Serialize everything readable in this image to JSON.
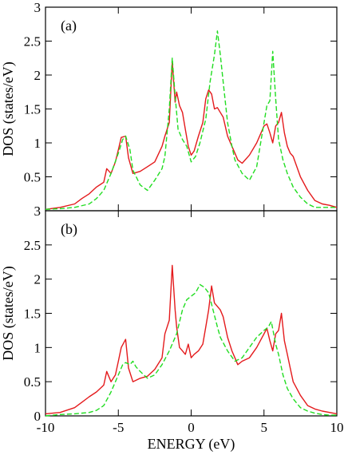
{
  "colors": {
    "series_red": "#e41a1c",
    "series_green": "#22dd22",
    "axis": "#000000"
  },
  "chart_data": [
    {
      "type": "line",
      "panel_label": "(a)",
      "xlabel": "",
      "ylabel": "DOS (states/eV)",
      "xlim": [
        -10,
        10
      ],
      "ylim": [
        0,
        3
      ],
      "yticks": [
        0.5,
        1,
        1.5,
        2,
        2.5,
        3
      ],
      "ytick_labels": [
        "0.5",
        "1",
        "1.5",
        "2",
        "2.5",
        "3"
      ],
      "grid": false,
      "series": [
        {
          "style": "solid",
          "color": "#e41a1c",
          "x": [
            -10,
            -9,
            -8,
            -7.5,
            -7,
            -6.5,
            -6,
            -5.8,
            -5.5,
            -5.2,
            -5,
            -4.8,
            -4.5,
            -4.3,
            -4,
            -3.5,
            -3,
            -2.5,
            -2,
            -1.8,
            -1.5,
            -1.3,
            -1.1,
            -1,
            -0.8,
            -0.6,
            -0.4,
            -0.2,
            0,
            0.2,
            0.5,
            0.8,
            1,
            1.2,
            1.4,
            1.6,
            1.8,
            2,
            2.2,
            2.5,
            2.8,
            3,
            3.2,
            3.5,
            4,
            4.5,
            5,
            5.2,
            5.4,
            5.6,
            5.8,
            6,
            6.2,
            6.4,
            6.6,
            6.8,
            7,
            7.5,
            8,
            8.5,
            9,
            9.5,
            10
          ],
          "y": [
            0.02,
            0.05,
            0.1,
            0.18,
            0.25,
            0.35,
            0.42,
            0.62,
            0.55,
            0.72,
            0.9,
            1.08,
            1.1,
            0.78,
            0.55,
            0.58,
            0.65,
            0.72,
            0.95,
            1.1,
            1.3,
            2.2,
            1.6,
            1.75,
            1.55,
            1.45,
            1.2,
            0.95,
            0.82,
            0.88,
            1.1,
            1.3,
            1.65,
            1.78,
            1.72,
            1.5,
            1.52,
            1.45,
            1.38,
            1.1,
            0.95,
            0.85,
            0.75,
            0.7,
            0.82,
            1.0,
            1.25,
            1.28,
            1.15,
            1.0,
            1.25,
            1.3,
            1.45,
            1.15,
            0.95,
            0.85,
            0.8,
            0.5,
            0.3,
            0.15,
            0.1,
            0.08,
            0.05
          ]
        },
        {
          "style": "dashed",
          "color": "#22dd22",
          "x": [
            -10,
            -9,
            -8,
            -7,
            -6.5,
            -6,
            -5.5,
            -5,
            -4.7,
            -4.5,
            -4.2,
            -4,
            -3.5,
            -3,
            -2.5,
            -2,
            -1.8,
            -1.5,
            -1.3,
            -1.1,
            -0.9,
            -0.6,
            -0.3,
            0,
            0.3,
            0.6,
            1,
            1.3,
            1.6,
            1.8,
            2,
            2.2,
            2.5,
            2.8,
            3,
            3.5,
            4,
            4.5,
            5,
            5.2,
            5.4,
            5.6,
            5.8,
            6,
            6.3,
            6.6,
            7,
            7.5,
            8,
            8.5,
            9,
            9.5,
            10
          ],
          "y": [
            0.02,
            0.03,
            0.05,
            0.1,
            0.18,
            0.3,
            0.55,
            0.85,
            1.05,
            1.1,
            0.9,
            0.6,
            0.38,
            0.3,
            0.45,
            0.62,
            0.8,
            1.5,
            2.25,
            1.7,
            1.2,
            1.05,
            0.95,
            0.72,
            0.8,
            1.0,
            1.35,
            1.9,
            2.3,
            2.65,
            2.3,
            1.9,
            1.3,
            0.95,
            0.75,
            0.55,
            0.45,
            0.65,
            1.3,
            1.55,
            1.62,
            2.35,
            1.65,
            1.05,
            0.75,
            0.55,
            0.35,
            0.2,
            0.1,
            0.05,
            0.05,
            0.05,
            0.05
          ]
        }
      ]
    },
    {
      "type": "line",
      "panel_label": "(b)",
      "xlabel": "ENERGY (eV)",
      "ylabel": "DOS (states/eV)",
      "xlim": [
        -10,
        10
      ],
      "ylim": [
        0,
        3
      ],
      "yticks": [
        0,
        0.5,
        1,
        1.5,
        2,
        2.5,
        3
      ],
      "ytick_labels": [
        "0",
        "0.5",
        "1",
        "1.5",
        "2",
        "2.5",
        "3"
      ],
      "xticks": [
        -10,
        -5,
        0,
        5,
        10
      ],
      "xtick_labels": [
        "-10",
        "-5",
        "0",
        "5",
        "10"
      ],
      "grid": false,
      "series": [
        {
          "style": "solid",
          "color": "#e41a1c",
          "x": [
            -10,
            -9,
            -8,
            -7.5,
            -7,
            -6.5,
            -6,
            -5.8,
            -5.5,
            -5.2,
            -5,
            -4.8,
            -4.5,
            -4.3,
            -4,
            -3.5,
            -3,
            -2.5,
            -2,
            -1.8,
            -1.5,
            -1.3,
            -1.1,
            -1,
            -0.8,
            -0.6,
            -0.4,
            -0.2,
            0,
            0.2,
            0.5,
            0.8,
            1,
            1.2,
            1.4,
            1.6,
            1.8,
            2,
            2.2,
            2.5,
            2.8,
            3,
            3.2,
            3.5,
            4,
            4.5,
            5,
            5.2,
            5.4,
            5.6,
            5.8,
            6,
            6.2,
            6.4,
            6.6,
            6.8,
            7,
            7.5,
            8,
            8.5,
            9,
            9.5,
            10
          ],
          "y": [
            0.03,
            0.05,
            0.12,
            0.2,
            0.28,
            0.35,
            0.45,
            0.65,
            0.5,
            0.6,
            0.8,
            1.0,
            1.12,
            0.7,
            0.5,
            0.55,
            0.58,
            0.68,
            0.85,
            1.2,
            1.4,
            2.2,
            1.55,
            1.3,
            1.0,
            0.95,
            0.9,
            1.05,
            0.85,
            0.9,
            0.95,
            1.05,
            1.3,
            1.55,
            1.9,
            1.65,
            1.6,
            1.55,
            1.45,
            1.15,
            0.95,
            0.85,
            0.75,
            0.8,
            0.85,
            1.0,
            1.2,
            1.28,
            1.1,
            0.95,
            1.2,
            1.25,
            1.5,
            1.1,
            0.9,
            0.7,
            0.5,
            0.3,
            0.15,
            0.1,
            0.07,
            0.05,
            0.03
          ]
        },
        {
          "style": "dashed",
          "color": "#22dd22",
          "x": [
            -10,
            -9,
            -8,
            -7,
            -6.5,
            -6,
            -5.5,
            -5,
            -4.7,
            -4.5,
            -4.2,
            -4,
            -3.8,
            -3.5,
            -3,
            -2.5,
            -2,
            -1.5,
            -1,
            -0.6,
            -0.3,
            0,
            0.3,
            0.6,
            0.9,
            1.2,
            1.5,
            1.8,
            2,
            2.5,
            3,
            3.5,
            4,
            4.5,
            5,
            5.3,
            5.5,
            5.8,
            6,
            6.3,
            6.6,
            7,
            7.5,
            8,
            8.5,
            9,
            9.5,
            10
          ],
          "y": [
            0.0,
            0.02,
            0.03,
            0.05,
            0.08,
            0.15,
            0.35,
            0.6,
            0.75,
            0.78,
            0.75,
            0.8,
            0.72,
            0.65,
            0.55,
            0.6,
            0.75,
            0.95,
            1.2,
            1.55,
            1.7,
            1.75,
            1.8,
            1.92,
            1.88,
            1.8,
            1.55,
            1.3,
            1.15,
            0.95,
            0.8,
            0.85,
            1.0,
            1.15,
            1.25,
            1.3,
            1.38,
            1.05,
            0.9,
            0.6,
            0.4,
            0.25,
            0.12,
            0.07,
            0.04,
            0.02,
            0.01,
            0.01
          ]
        }
      ]
    }
  ]
}
